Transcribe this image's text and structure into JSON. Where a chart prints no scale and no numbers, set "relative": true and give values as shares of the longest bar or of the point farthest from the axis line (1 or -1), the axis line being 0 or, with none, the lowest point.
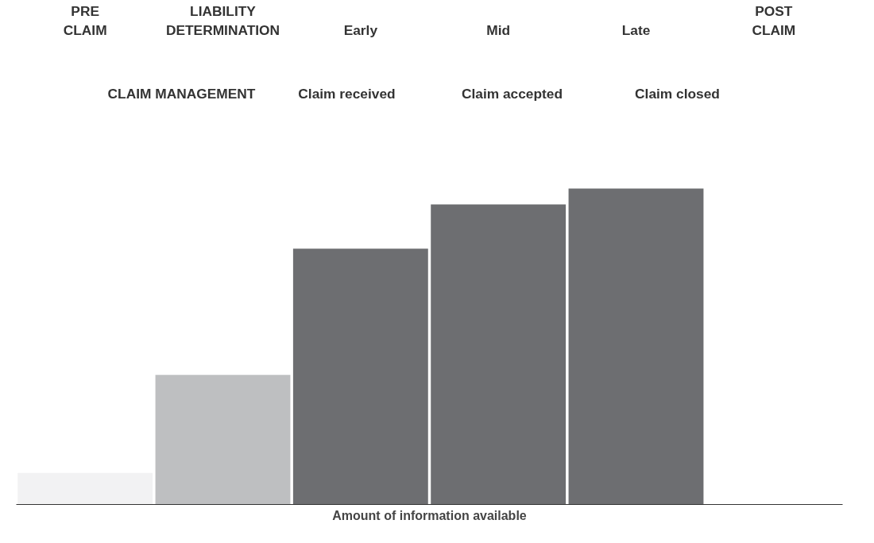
{
  "chart_data": {
    "type": "bar",
    "relative": true,
    "categories": [
      "PRE CLAIM",
      "LIABILITY DETERMINATION",
      "Early",
      "Mid",
      "Late",
      "POST CLAIM"
    ],
    "values": [
      0.1,
      0.41,
      0.81,
      0.95,
      1,
      null
    ],
    "colors": [
      "#f2f2f3",
      "#bebfc1",
      "#6d6e71",
      "#6d6e71",
      "#6d6e71",
      "#3b3b3d"
    ],
    "xlabel": "Amount of information available",
    "annotations": [
      "CLAIM MANAGEMENT",
      "Claim received",
      "Claim accepted",
      "Claim closed"
    ],
    "grid": false
  }
}
